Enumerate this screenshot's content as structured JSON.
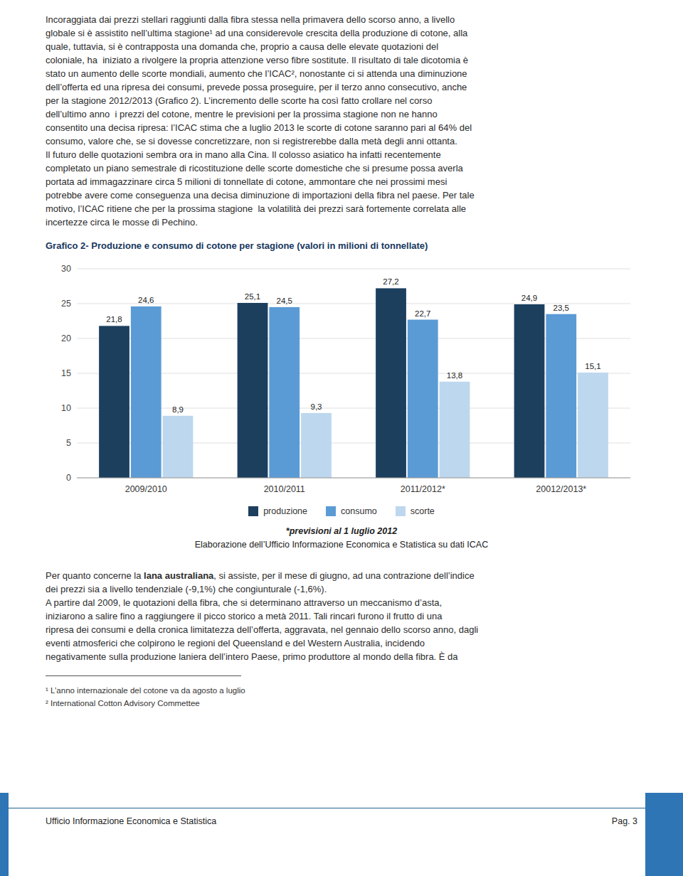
{
  "chart_data": {
    "type": "bar",
    "title": "Grafico 2- Produzione e consumo di cotone per stagione (valori in milioni di tonnellate)",
    "categories": [
      "2009/2010",
      "2010/2011",
      "2011/2012*",
      "20012/2013*"
    ],
    "series": [
      {
        "name": "produzione",
        "color": "#1c3f5e",
        "values": [
          21.8,
          25.1,
          27.2,
          24.9
        ],
        "value_labels": [
          "21,8",
          "25,1",
          "27,2",
          "24,9"
        ]
      },
      {
        "name": "consumo",
        "color": "#5b9bd5",
        "values": [
          24.6,
          24.5,
          22.7,
          23.5
        ],
        "value_labels": [
          "24,6",
          "24,5",
          "22,7",
          "23,5"
        ]
      },
      {
        "name": "scorte",
        "color": "#bdd7ee",
        "values": [
          8.9,
          9.3,
          13.8,
          15.1
        ],
        "value_labels": [
          "8,9",
          "9,3",
          "13,8",
          "15,1"
        ]
      }
    ],
    "ylim": [
      0,
      30
    ],
    "yticks": [
      0,
      5,
      10,
      15,
      20,
      25,
      30
    ],
    "grid": true,
    "legend": "bottom",
    "data_labels": true,
    "annotations": [
      "*previsioni al 1 luglio 2012",
      "Elaborazione dell’Ufficio Informazione Economica e Statistica su dati ICAC"
    ]
  },
  "page_text": {
    "top_text_lines": [
      "Incoraggiata dai prezzi stellari raggiunti dalla fibra stessa nella primavera dello scorso anno, a livello",
      "globale si è assistito nell’ultima stagione¹ ad una considerevole crescita della produzione di cotone, alla",
      "quale, tuttavia, si è contrapposta una domanda che, proprio a causa delle elevate quotazioni del",
      "coloniale, ha  iniziato a rivolgere la propria attenzione verso fibre sostitute. Il risultato di tale dicotomia è",
      "stato un aumento delle scorte mondiali, aumento che l’ICAC², nonostante ci si attenda una diminuzione",
      "dell’offerta ed una ripresa dei consumi, prevede possa proseguire, per il terzo anno consecutivo, anche",
      "per la stagione 2012/2013 (Grafico 2). L’incremento delle scorte ha così fatto crollare nel corso",
      "dell’ultimo anno  i prezzi del cotone, mentre le previsioni per la prossima stagione non ne hanno",
      "consentito una decisa ripresa: l’ICAC stima che a luglio 2013 le scorte di cotone saranno pari al 64% del",
      "consumo, valore che, se si dovesse concretizzare, non si registrerebbe dalla metà degli anni ottanta.",
      "Il futuro delle quotazioni sembra ora in mano alla Cina. Il colosso asiatico ha infatti recentemente",
      "completato un piano semestrale di ricostituzione delle scorte domestiche che si presume possa averla",
      "portata ad immagazzinare circa 5 milioni di tonnellate di cotone, ammontare che nei prossimi mesi",
      "potrebbe avere come conseguenza una decisa diminuzione di importazioni della fibra nel paese. Per tale",
      "motivo, l’ICAC ritiene che per la prossima stagione  la volatilità dei prezzi sarà fortemente correlata alle",
      "incertezze circa le mosse di Pechino."
    ],
    "bottom_text_lines": [
      "Per quanto concerne la lana australiana, si assiste, per il mese di giugno, ad una contrazione dell’indice",
      "dei prezzi sia a livello tendenziale (-9,1%) che congiunturale (-1,6%).",
      "A partire dal 2009, le quotazioni della fibra, che si determinano attraverso un meccanismo d’asta,",
      "iniziarono a salire fino a raggiungere il picco storico a metà 2011. Tali rincari furono il frutto di una",
      "ripresa dei consumi e della cronica limitatezza dell’offerta, aggravata, nel gennaio dello scorso anno, dagli",
      "eventi atmosferici che colpirono le regioni del Queensland e del Western Australia, incidendo",
      "negativamente sulla produzione laniera dell’intero Paese, primo produttore al mondo della fibra. È da"
    ],
    "bottom_bold_phrase": "lana australiana",
    "footnotes": [
      "¹ L’anno internazionale del cotone va da agosto a luglio",
      "² International Cotton Advisory Commettee"
    ],
    "footer_text": "Ufficio Informazione Economica e Statistica",
    "footer_page": "Pag. 3"
  }
}
